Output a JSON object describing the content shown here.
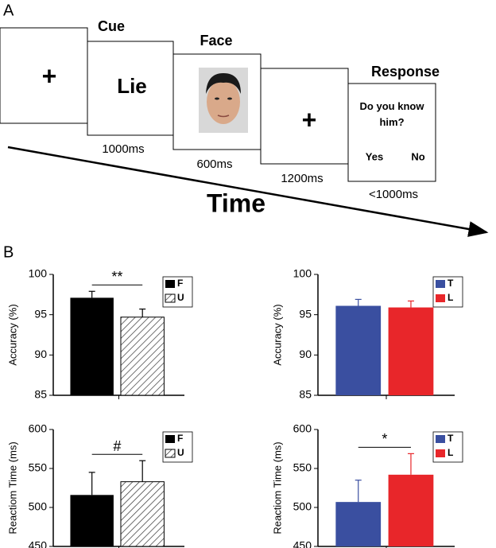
{
  "panel_a": {
    "label": "A",
    "frames": [
      {
        "content": "+"
      },
      {
        "title": "Cue",
        "content": "Lie",
        "duration": "1000ms"
      },
      {
        "title": "Face",
        "duration": "600ms"
      },
      {
        "content": "+",
        "duration": "1200ms"
      },
      {
        "title": "Response",
        "content": "Do you know him?",
        "options": [
          "Yes",
          "No"
        ],
        "duration": "<1000ms"
      }
    ],
    "time_label": "Time"
  },
  "panel_b": {
    "label": "B"
  },
  "chart_data": [
    {
      "type": "bar",
      "ylabel": "Accuracy (%)",
      "ylim": [
        85,
        100
      ],
      "yticks": [
        85,
        90,
        95,
        100
      ],
      "annotation": "**",
      "series": [
        {
          "name": "F",
          "color": "#000000",
          "values": [
            97.1
          ],
          "errors": [
            0.8
          ]
        },
        {
          "name": "U",
          "color": "#ffffff",
          "hatch": true,
          "values": [
            94.7
          ],
          "errors": [
            1.0
          ]
        }
      ]
    },
    {
      "type": "bar",
      "ylabel": "Accuracy (%)",
      "ylim": [
        85,
        100
      ],
      "yticks": [
        85,
        90,
        95,
        100
      ],
      "series": [
        {
          "name": "T",
          "color": "#3a4fa0",
          "values": [
            96.1
          ],
          "errors": [
            0.8
          ]
        },
        {
          "name": "L",
          "color": "#e8262a",
          "values": [
            95.9
          ],
          "errors": [
            0.8
          ]
        }
      ]
    },
    {
      "type": "bar",
      "ylabel": "Reactiom Time (ms)",
      "ylim": [
        450,
        600
      ],
      "yticks": [
        450,
        500,
        550,
        600
      ],
      "annotation": "#",
      "series": [
        {
          "name": "F",
          "color": "#000000",
          "values": [
            516
          ],
          "errors": [
            29
          ]
        },
        {
          "name": "U",
          "color": "#ffffff",
          "hatch": true,
          "values": [
            533
          ],
          "errors": [
            27
          ]
        }
      ]
    },
    {
      "type": "bar",
      "ylabel": "Reactiom Time (ms)",
      "ylim": [
        450,
        600
      ],
      "yticks": [
        450,
        500,
        550,
        600
      ],
      "annotation": "*",
      "series": [
        {
          "name": "T",
          "color": "#3a4fa0",
          "values": [
            507
          ],
          "errors": [
            28
          ]
        },
        {
          "name": "L",
          "color": "#e8262a",
          "values": [
            542
          ],
          "errors": [
            27
          ]
        }
      ]
    }
  ]
}
